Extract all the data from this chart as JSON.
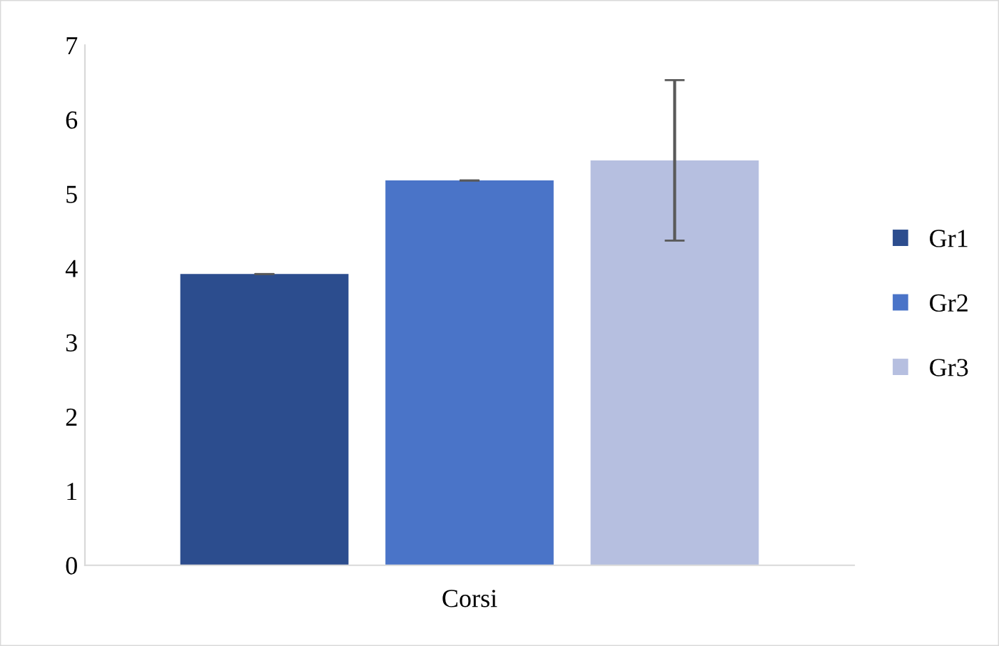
{
  "chart_data": {
    "type": "bar",
    "categories": [
      "Corsi"
    ],
    "series": [
      {
        "name": "Gr1",
        "color": "#2c4d8e",
        "values": [
          3.92
        ],
        "errors": [
          0
        ]
      },
      {
        "name": "Gr2",
        "color": "#4a74c8",
        "values": [
          5.18
        ],
        "errors": [
          0
        ]
      },
      {
        "name": "Gr3",
        "color": "#b6bfe0",
        "values": [
          5.45
        ],
        "errors": [
          1.08
        ]
      }
    ],
    "ylim": [
      0,
      7
    ],
    "yticks": [
      0,
      1,
      2,
      3,
      4,
      5,
      6,
      7
    ],
    "grid": false,
    "legend": "right"
  }
}
